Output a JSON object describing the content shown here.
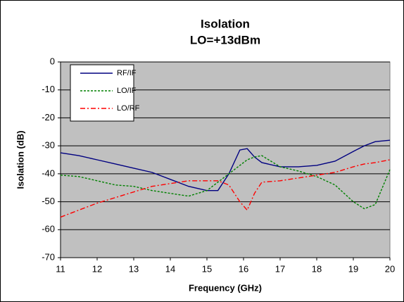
{
  "chart_data": {
    "type": "line",
    "title": "Isolation",
    "subtitle": "LO=+13dBm",
    "x_label": "Frequency (GHz)",
    "y_label": "Isolation (dB)",
    "x": [
      11,
      11.5,
      12,
      12.5,
      13,
      13.5,
      14,
      14.5,
      15,
      15.3,
      15.6,
      15.9,
      16.1,
      16.3,
      16.5,
      17,
      17.5,
      18,
      18.5,
      19,
      19.3,
      19.6,
      20
    ],
    "series": [
      {
        "name": "RF/IF",
        "color": "#000080",
        "style": "solid",
        "values": [
          -32.5,
          -33.5,
          -35,
          -36.5,
          -38,
          -39.5,
          -42,
          -44.5,
          -46,
          -46,
          -40,
          -31.5,
          -31,
          -34,
          -36,
          -37.5,
          -37.5,
          -37,
          -35.5,
          -32,
          -30,
          -28.5,
          -28
        ]
      },
      {
        "name": "LO/IF",
        "color": "#008000",
        "style": "dashed",
        "values": [
          -40.5,
          -41,
          -42.5,
          -44,
          -44.5,
          -46,
          -47,
          -48,
          -46,
          -43,
          -40,
          -37,
          -35,
          -34,
          -33.5,
          -37.5,
          -39,
          -41,
          -44,
          -50,
          -52.5,
          -51,
          -38.5
        ]
      },
      {
        "name": "LO/RF",
        "color": "#ff0000",
        "style": "dashdot",
        "values": [
          -55.5,
          -53,
          -50.5,
          -48.5,
          -46.5,
          -44.5,
          -43.5,
          -42.5,
          -42.5,
          -42.5,
          -44,
          -50,
          -53,
          -47,
          -43,
          -42.5,
          -41.5,
          -40.5,
          -39.5,
          -37.5,
          -36.5,
          -36,
          -35
        ]
      }
    ],
    "xlim": [
      11,
      20
    ],
    "xticks": [
      11,
      12,
      13,
      14,
      15,
      16,
      17,
      18,
      19,
      20
    ],
    "ylim": [
      -70,
      0
    ],
    "yticks": [
      -70,
      -60,
      -50,
      -40,
      -30,
      -20,
      -10,
      0
    ],
    "grid": true,
    "legend": "upper left",
    "background": "#c0c0c0"
  }
}
